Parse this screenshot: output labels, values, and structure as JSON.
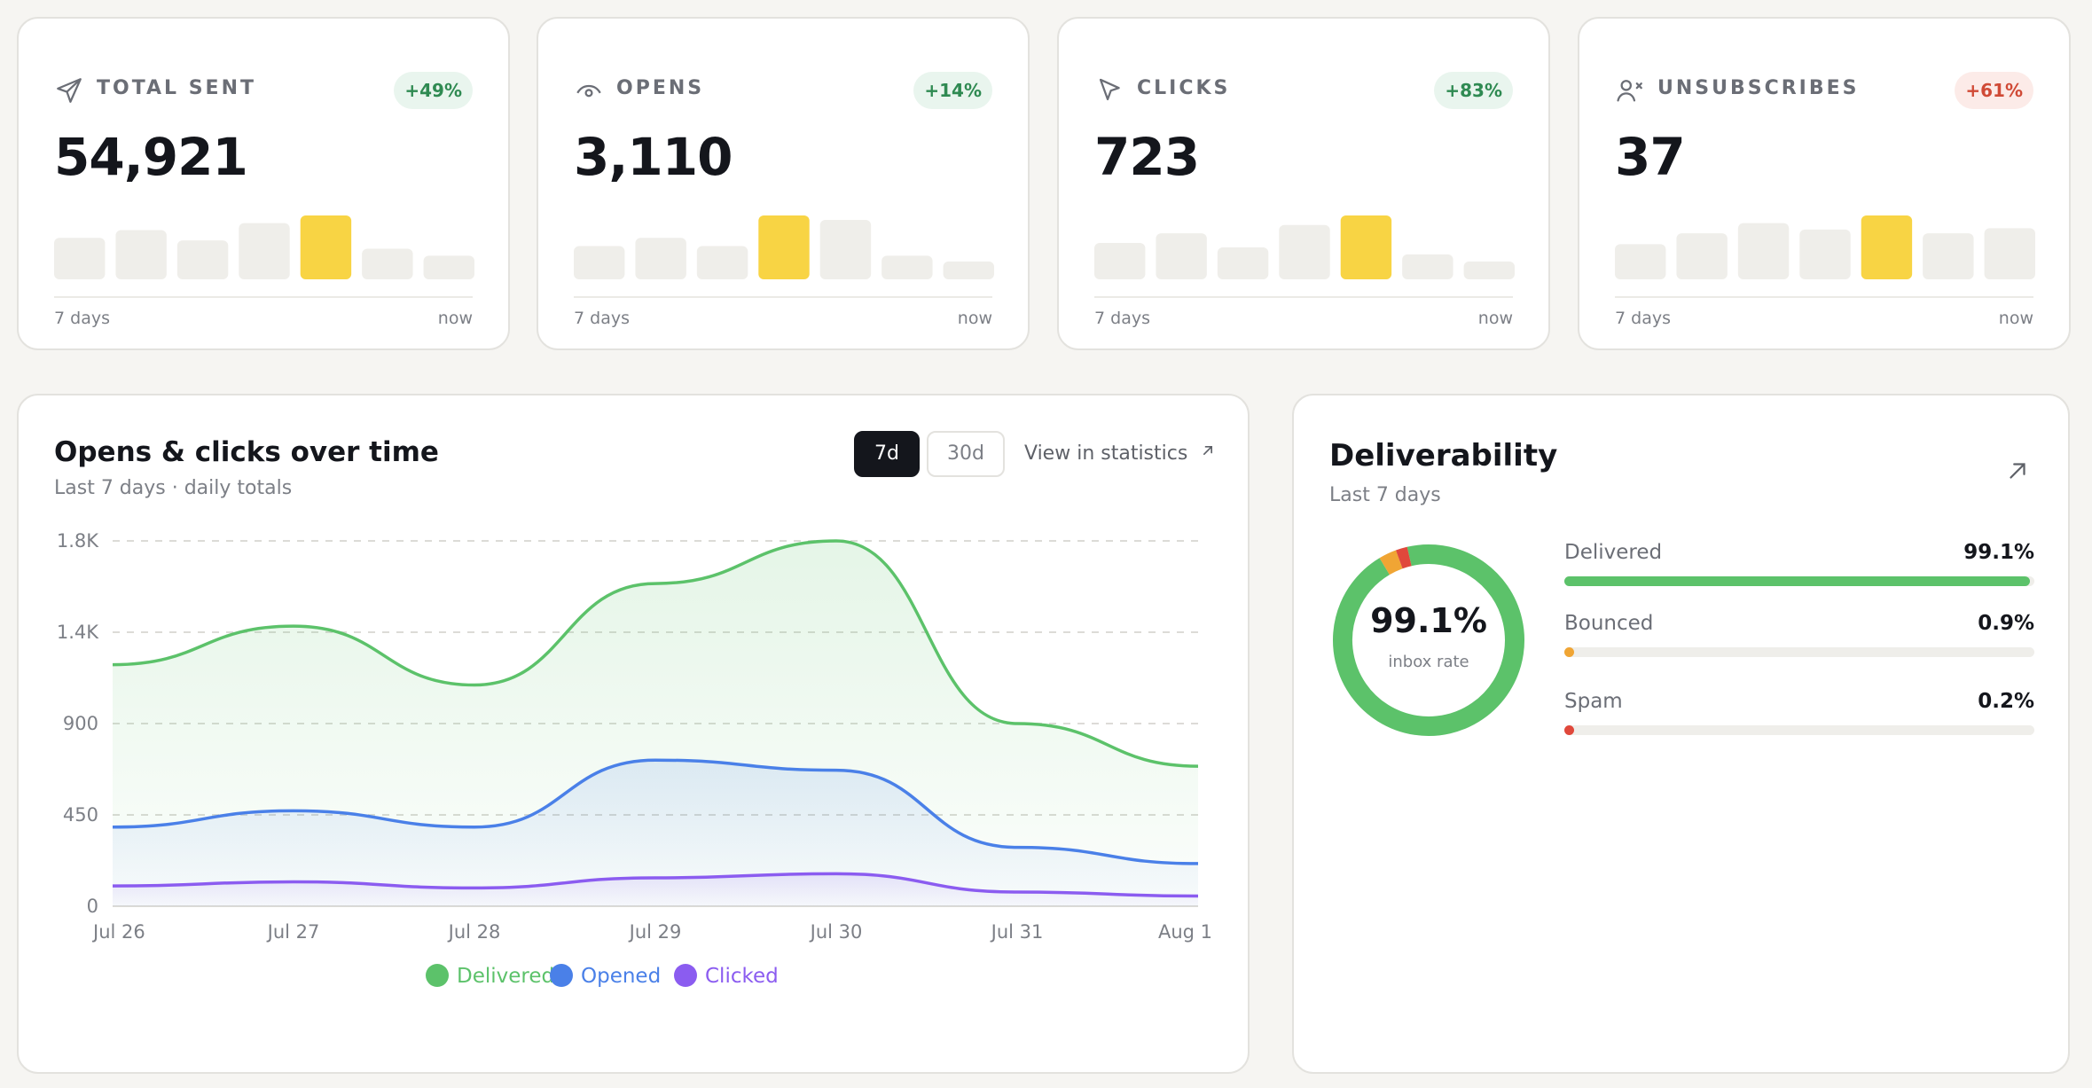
{
  "colors": {
    "delivered": "#5cc26a",
    "opened": "#4a80e8",
    "clicked": "#8b5cf0",
    "bounced": "#f0a534",
    "spam": "#e0483b",
    "spark_bar": "#efeeea",
    "spark_highlight": "#f8d444"
  },
  "stats": [
    {
      "icon": "send-icon",
      "label": "TOTAL SENT",
      "badge": "+49%",
      "badge_type": "pos",
      "value": "54,921",
      "spark": [
        0.65,
        0.77,
        0.61,
        0.88,
        1.0,
        0.48,
        0.37
      ],
      "highlight_index": 4,
      "from": "7 days",
      "to": "now"
    },
    {
      "icon": "eye-icon",
      "label": "OPENS",
      "badge": "+14%",
      "badge_type": "pos",
      "value": "3,110",
      "spark": [
        0.52,
        0.65,
        0.52,
        1.0,
        0.93,
        0.37,
        0.28
      ],
      "highlight_index": 3,
      "from": "7 days",
      "to": "now"
    },
    {
      "icon": "cursor-icon",
      "label": "CLICKS",
      "badge": "+83%",
      "badge_type": "pos",
      "value": "723",
      "spark": [
        0.57,
        0.72,
        0.5,
        0.85,
        1.0,
        0.39,
        0.28
      ],
      "highlight_index": 4,
      "from": "7 days",
      "to": "now"
    },
    {
      "icon": "user-remove-icon",
      "label": "UNSUBSCRIBES",
      "badge": "+61%",
      "badge_type": "neg",
      "value": "37",
      "spark": [
        0.55,
        0.72,
        0.88,
        0.78,
        1.0,
        0.72,
        0.8
      ],
      "highlight_index": 4,
      "from": "7 days",
      "to": "now"
    }
  ],
  "chart": {
    "title": "Opens & clicks over time",
    "subtitle": "Last 7 days · daily totals",
    "range_options": [
      "7d",
      "30d"
    ],
    "selected_range": "7d",
    "link_label": "View in statistics",
    "link_icon": "arrow-up-right-icon"
  },
  "chart_data": {
    "type": "area",
    "categories": [
      "Jul 26",
      "Jul 27",
      "Jul 28",
      "Jul 29",
      "Jul 30",
      "Jul 31",
      "Aug 1"
    ],
    "series": [
      {
        "name": "Delivered",
        "values": [
          1190,
          1380,
          1090,
          1590,
          1800,
          900,
          690
        ]
      },
      {
        "name": "Opened",
        "values": [
          390,
          470,
          390,
          720,
          670,
          290,
          210
        ]
      },
      {
        "name": "Clicked",
        "values": [
          100,
          120,
          90,
          140,
          160,
          70,
          50
        ]
      }
    ],
    "y_ticks": [
      0,
      450,
      900,
      1350,
      1800
    ],
    "y_tick_labels": [
      "0",
      "450",
      "900",
      "1.4K",
      "1.8K"
    ],
    "ylim": [
      0,
      1800
    ],
    "grid": true,
    "legend": "bottom-center"
  },
  "deliverability": {
    "title": "Deliverability",
    "subtitle": "Last 7 days",
    "link_icon": "arrow-up-right-icon",
    "donut_value": "99.1%",
    "donut_caption": "inbox rate",
    "metrics": [
      {
        "name": "Delivered",
        "value": "99.1%",
        "fraction": 0.991,
        "color": "#5cc26a"
      },
      {
        "name": "Bounced",
        "value": "0.9%",
        "fraction": 0.009,
        "color": "#f0a534"
      },
      {
        "name": "Spam",
        "value": "0.2%",
        "fraction": 0.002,
        "color": "#e0483b"
      }
    ]
  }
}
